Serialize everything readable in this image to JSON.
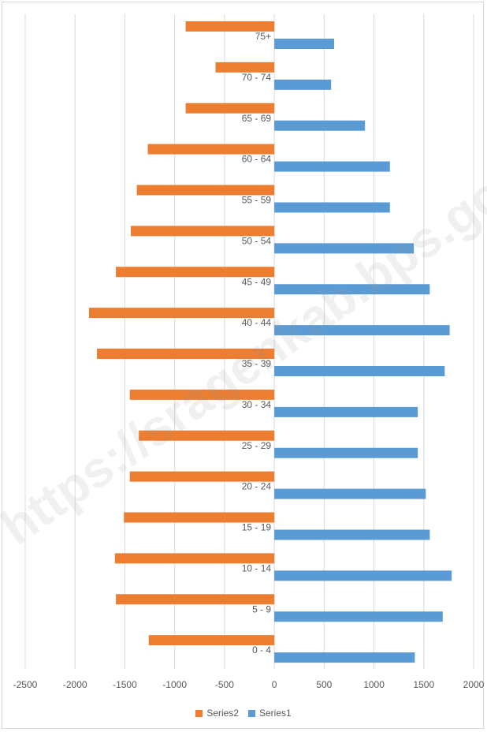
{
  "chart_data": {
    "type": "bar",
    "orientation": "horizontal",
    "categories": [
      "0 - 4",
      "5 - 9",
      "10 - 14",
      "15 - 19",
      "20 - 24",
      "25 - 29",
      "30 - 34",
      "35 - 39",
      "40 - 44",
      "45 - 49",
      "50 - 54",
      "55 - 59",
      "60 - 64",
      "65 - 69",
      "70 - 74",
      "75+"
    ],
    "series": [
      {
        "name": "Series2",
        "color": "#ed7d31",
        "values": [
          -1260,
          -1590,
          -1600,
          -1510,
          -1450,
          -1360,
          -1450,
          -1780,
          -1860,
          -1590,
          -1440,
          -1380,
          -1270,
          -890,
          -590,
          -890
        ]
      },
      {
        "name": "Series1",
        "color": "#5b9bd5",
        "values": [
          1410,
          1690,
          1780,
          1560,
          1520,
          1440,
          1440,
          1710,
          1760,
          1560,
          1400,
          1160,
          1160,
          910,
          570,
          600
        ]
      }
    ],
    "xlim": [
      -2500,
      2000
    ],
    "xticks": [
      "-2500",
      "-2000",
      "-1500",
      "-1000",
      "-500",
      "0",
      "500",
      "1000",
      "1500",
      "2000"
    ],
    "grid": true,
    "legend_position": "bottom"
  },
  "watermark": "https://sragenkab.bps.go.id"
}
